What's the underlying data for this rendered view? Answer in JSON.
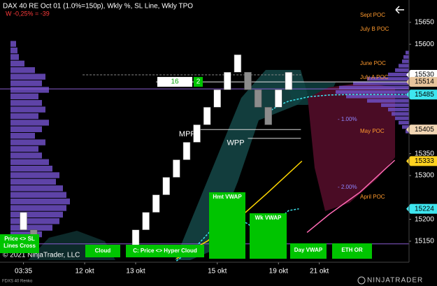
{
  "title": "DAX 40 RE Oct 01 (1.0%=150p), Wkly %, SL Line, Wkly TPO",
  "subtitle": "W -0,25% = -39",
  "instrument": "FDXS 40 Renko",
  "copyright": "© 2021 NinjaTrader, LLC",
  "brand": "NINJATRADER",
  "signals": [
    "Price <> SL Lines Cross",
    "Cloud",
    "C: Price <> Hyper Cloud",
    "Hmt VWAP",
    "Wk VWAP",
    "Day VWAP",
    "ETH OR"
  ],
  "chart_data": {
    "type": "renko",
    "x": [
      0,
      1,
      11,
      12,
      13,
      14,
      15,
      16,
      17,
      18,
      19,
      20,
      21,
      22,
      23,
      24,
      25,
      26
    ],
    "open": [
      15176,
      15176,
      15136,
      15176,
      15216,
      15256,
      15296,
      15336,
      15376,
      15416,
      15456,
      15496,
      15536,
      15536,
      15496,
      15456,
      15456,
      15496
    ],
    "close": [
      15216,
      15136,
      15176,
      15216,
      15256,
      15296,
      15336,
      15376,
      15416,
      15456,
      15496,
      15536,
      15576,
      15496,
      15456,
      15416,
      15496,
      15536
    ],
    "up_color": "#ffffff",
    "down_color": "#8c8c8c",
    "xlim": [
      -2.3,
      37.8
    ],
    "xticks": [
      {
        "value": 0,
        "label": "03:35"
      },
      {
        "value": 6,
        "label": "12 okt"
      },
      {
        "value": 11,
        "label": "13 okt"
      },
      {
        "value": 19,
        "label": "15 okt"
      },
      {
        "value": 25,
        "label": "19 okt"
      },
      {
        "value": 29,
        "label": "21 okt"
      }
    ],
    "ylim": [
      15102,
      15701
    ],
    "yticks": [
      15650,
      15600,
      15350,
      15300,
      15200,
      15150
    ],
    "price_markers": [
      {
        "value": 15530,
        "color": "#ffffff"
      },
      {
        "value": 15514,
        "color": "#e6c49c"
      },
      {
        "value": 15485,
        "color": "#3ee6f0"
      },
      {
        "value": 15405,
        "color": "#f2d6b4"
      },
      {
        "value": 15333,
        "color": "#ffd21f"
      },
      {
        "value": 15224,
        "color": "#3ee6f0"
      }
    ],
    "levels": [
      {
        "value": 15498,
        "x": [
          -2.3,
          37.8
        ],
        "color": "#8a5cd0"
      },
      {
        "value": 15514,
        "x": [
          13,
          37.8
        ],
        "color": "#e8e8e8"
      },
      {
        "value": 15530,
        "x": [
          5.8,
          27.2
        ],
        "color": "#888888",
        "dash": true
      },
      {
        "value": 15405,
        "x": [
          17.3,
          27.2
        ],
        "color": "#d8d8d8",
        "label": "MPP"
      },
      {
        "value": 15385,
        "x": [
          22,
          27.2
        ],
        "color": "#d8d8d8",
        "label": "WPP"
      },
      {
        "value": 15144,
        "x": [
          -2.3,
          37.8
        ],
        "color": "#8a5cd0"
      }
    ],
    "annotations": [
      {
        "label": "Sept POC",
        "value": 15666,
        "color": "#ff9a2e"
      },
      {
        "label": "July B POC",
        "value": 15634,
        "color": "#ff9a2e"
      },
      {
        "label": "June POC",
        "value": 15556,
        "color": "#ff9a2e"
      },
      {
        "label": "July A POC",
        "value": 15524,
        "color": "#ff9a2e"
      },
      {
        "label": "May POC",
        "value": 15401,
        "color": "#ff9a2e"
      },
      {
        "label": "April POC",
        "value": 15251,
        "color": "#ff9a2e"
      },
      {
        "label": "- 1.00%",
        "value": 15428,
        "color": "#8f86ff"
      },
      {
        "label": "- 2.00%",
        "value": 15273,
        "color": "#8f86ff"
      }
    ],
    "tpo": {
      "value": 15514,
      "count": 16,
      "extra": 2
    },
    "lines": [
      {
        "color": "#ffd700",
        "x": [
          15,
          18,
          21,
          24,
          27.3
        ],
        "values": [
          15110,
          15150,
          15200,
          15262,
          15333
        ]
      },
      {
        "color": "#ff69b4",
        "x": [
          27.8,
          30,
          33,
          36.4
        ],
        "values": [
          15170,
          15212,
          15262,
          15335
        ]
      },
      {
        "color": "#3ee6f0",
        "dash": true,
        "x": [
          15,
          17,
          19,
          20,
          21,
          22,
          23,
          24,
          25,
          26,
          27
        ],
        "values": [
          15105,
          15140,
          15190,
          15215,
          15200,
          15190,
          15170,
          15180,
          15200,
          15220,
          15224
        ]
      },
      {
        "color": "#3ee6f0",
        "dash": true,
        "x": [
          24,
          25,
          26,
          28,
          30,
          32,
          34,
          36,
          37.5
        ],
        "values": [
          15445,
          15460,
          15470,
          15480,
          15484,
          15485,
          15485,
          15485,
          15485
        ]
      }
    ],
    "profiles": [
      {
        "side": "left",
        "color": "#6e4fc4",
        "step": 15,
        "prices": [
          15600,
          15585,
          15570,
          15555,
          15540,
          15525,
          15510,
          15495,
          15480,
          15465,
          15450,
          15435,
          15420,
          15405,
          15390,
          15375,
          15360,
          15345,
          15330,
          15315,
          15300,
          15285,
          15270,
          15255,
          15240,
          15225,
          15210,
          15195,
          15180,
          15165,
          15150
        ],
        "values": [
          8,
          10,
          12,
          20,
          35,
          50,
          45,
          55,
          40,
          45,
          50,
          40,
          55,
          45,
          35,
          50,
          40,
          45,
          55,
          60,
          70,
          65,
          75,
          80,
          85,
          80,
          75,
          70,
          60,
          45,
          30
        ]
      },
      {
        "side": "right",
        "color": "#6e4fc4",
        "step": 10,
        "prices": [
          15580,
          15570,
          15560,
          15550,
          15540,
          15530,
          15520,
          15510,
          15500,
          15490,
          15480,
          15470,
          15460,
          15450,
          15440,
          15430,
          15420,
          15410,
          15400
        ],
        "values": [
          5,
          8,
          10,
          15,
          20,
          30,
          60,
          80,
          100,
          105,
          90,
          60,
          40,
          30,
          25,
          20,
          15,
          10,
          5
        ]
      }
    ]
  }
}
